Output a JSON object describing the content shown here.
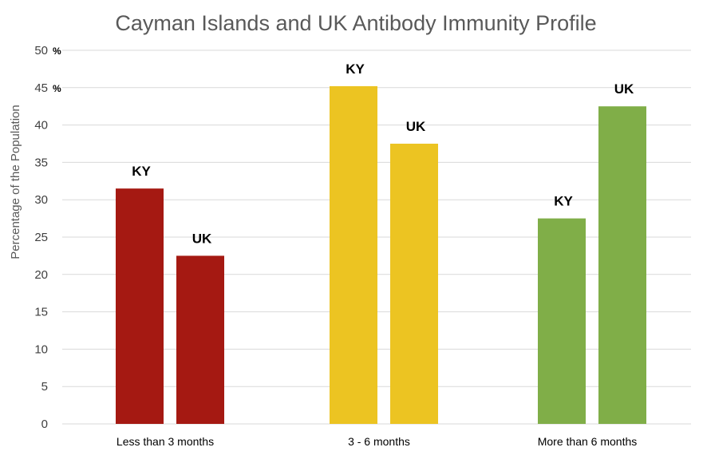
{
  "chart_data": {
    "type": "bar",
    "title": "Cayman Islands and UK Antibody Immunity Profile",
    "xlabel": "",
    "ylabel": "Percentage of the Population",
    "ylim": [
      0,
      50
    ],
    "yticks": [
      0,
      5,
      10,
      15,
      20,
      25,
      30,
      35,
      40,
      45,
      50
    ],
    "ytick_unit": "%",
    "ytick_unit_on": [
      45,
      50
    ],
    "grid": true,
    "categories": [
      "Less than 3 months",
      "3 - 6 months",
      "More than 6 months"
    ],
    "bars": [
      {
        "category": "Less than 3 months",
        "label": "KY",
        "value": 31.5,
        "color": "#a51912"
      },
      {
        "category": "Less than 3 months",
        "label": "UK",
        "value": 22.5,
        "color": "#a51912"
      },
      {
        "category": "3 - 6 months",
        "label": "KY",
        "value": 45.2,
        "color": "#ecc422"
      },
      {
        "category": "3 - 6 months",
        "label": "UK",
        "value": 37.5,
        "color": "#ecc422"
      },
      {
        "category": "More than 6 months",
        "label": "KY",
        "value": 27.5,
        "color": "#80ae48"
      },
      {
        "category": "More than 6 months",
        "label": "UK",
        "value": 42.5,
        "color": "#80ae48"
      }
    ]
  }
}
